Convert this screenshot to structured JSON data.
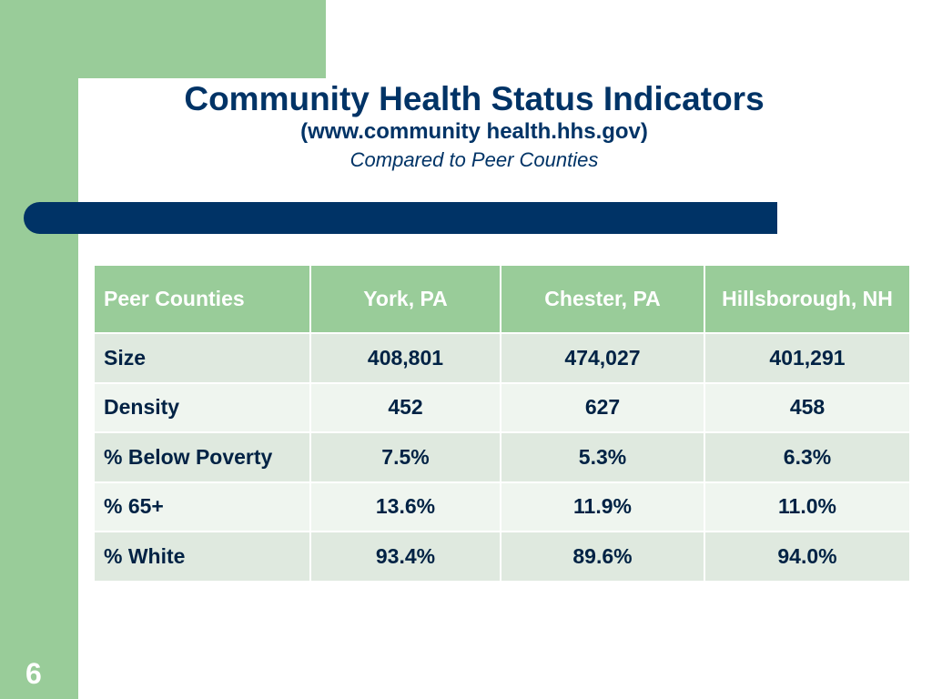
{
  "slide": {
    "title": "Community Health Status Indicators",
    "subtitle": "(www.community health.hhs.gov)",
    "caption": "Compared to Peer Counties",
    "page_number": "6"
  },
  "table": {
    "headers": [
      "Peer Counties",
      "York, PA",
      "Chester, PA",
      "Hillsborough, NH"
    ],
    "rows": [
      [
        "Size",
        "408,801",
        "474,027",
        "401,291"
      ],
      [
        "Density",
        "452",
        "627",
        "458"
      ],
      [
        "% Below Poverty",
        "7.5%",
        "5.3%",
        "6.3%"
      ],
      [
        "% 65+",
        "13.6%",
        "11.9%",
        "11.0%"
      ],
      [
        "% White",
        "93.4%",
        "89.6%",
        "94.0%"
      ]
    ]
  },
  "colors": {
    "accent_green": "#99cc99",
    "navy": "#003366"
  }
}
